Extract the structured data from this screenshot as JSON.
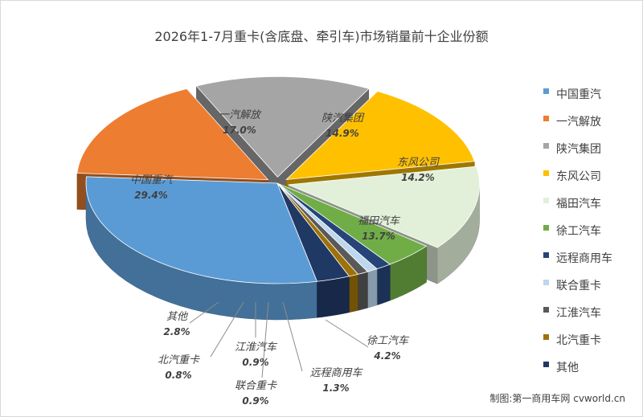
{
  "chart_data": {
    "type": "pie",
    "title": "2026年1-7月重卡(含底盘、牵引车)市场销量前十企业份额",
    "slices": [
      {
        "name": "中国重汽",
        "value": 29.4,
        "label": "29.4%",
        "color": "#5B9BD5"
      },
      {
        "name": "一汽解放",
        "value": 17.0,
        "label": "17.0%",
        "color": "#ED7D31"
      },
      {
        "name": "陕汽集团",
        "value": 14.9,
        "label": "14.9%",
        "color": "#A5A5A5"
      },
      {
        "name": "东风公司",
        "value": 14.2,
        "label": "14.2%",
        "color": "#FFC000"
      },
      {
        "name": "福田汽车",
        "value": 13.7,
        "label": "13.7%",
        "color": "#E2F0D9"
      },
      {
        "name": "徐工汽车",
        "value": 4.2,
        "label": "4.2%",
        "color": "#70AD47"
      },
      {
        "name": "远程商用车",
        "value": 1.3,
        "label": "1.3%",
        "color": "#264478"
      },
      {
        "name": "联合重卡",
        "value": 0.9,
        "label": "0.9%",
        "color": "#BDD7EE"
      },
      {
        "name": "江淮汽车",
        "value": 0.9,
        "label": "0.9%",
        "color": "#595959"
      },
      {
        "name": "北汽重卡",
        "value": 0.8,
        "label": "0.8%",
        "color": "#9E7209"
      },
      {
        "name": "其他",
        "value": 2.8,
        "label": "2.8%",
        "color": "#203864"
      }
    ],
    "legend_position": "right",
    "style": "3d-exploded"
  },
  "credit": "制图:第一商用车网 cvworld.cn"
}
